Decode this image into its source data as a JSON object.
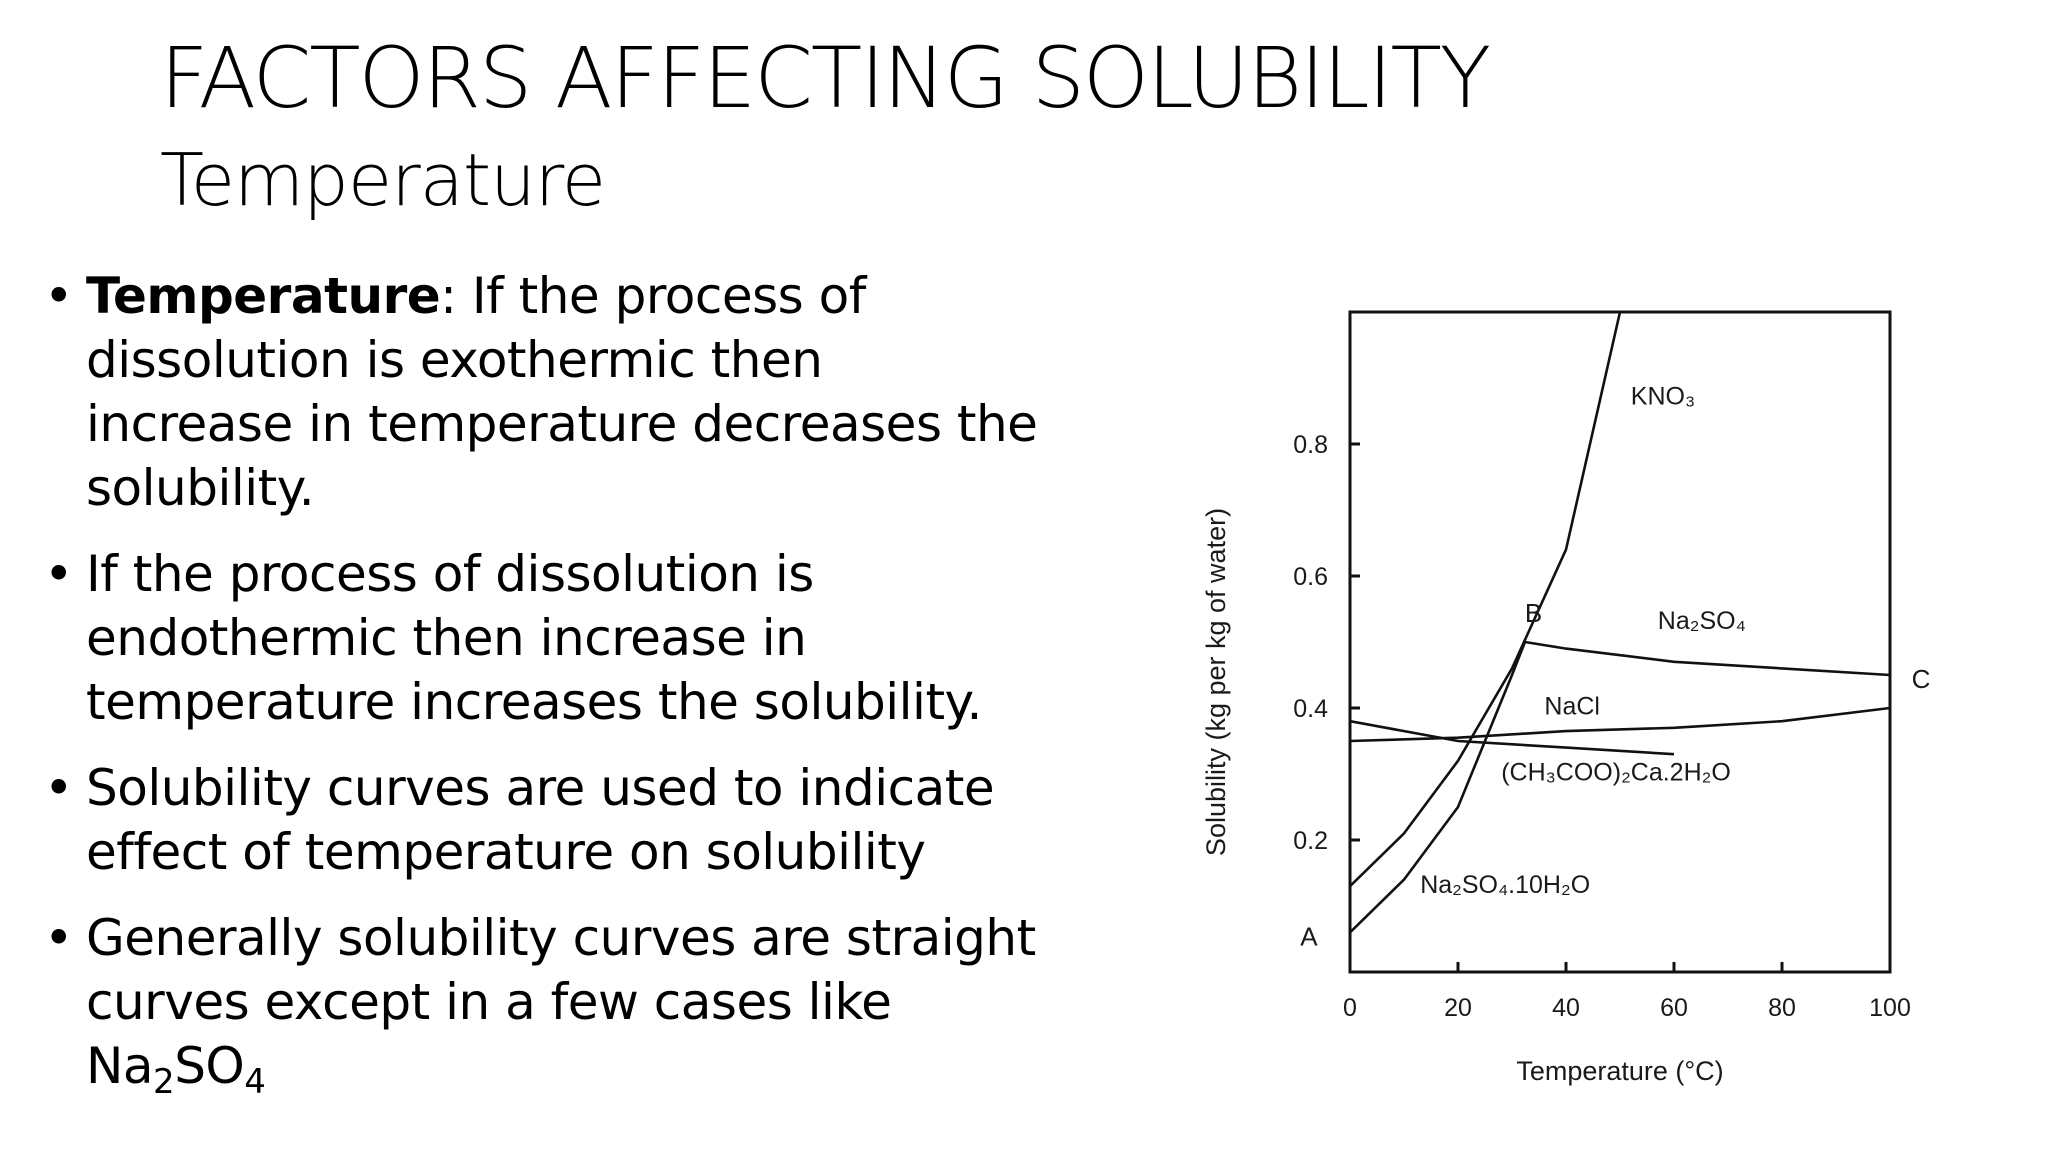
{
  "slide": {
    "title": "FACTORS AFFECTING SOLUBILITY",
    "subtitle": "Temperature",
    "bullets": [
      {
        "lead": "Temperature",
        "text": ": If the process of dissolution is exothermic then increase in temperature decreases the solubility."
      },
      {
        "text": "If the process of dissolution is endothermic then increase in temperature increases the solubility."
      },
      {
        "text": "Solubility curves are used to indicate effect of temperature on solubility"
      },
      {
        "text": "Generally solubility curves are straight curves except in a few cases like",
        "formula": {
          "a": "Na",
          "s1": "2",
          "b": "SO",
          "s2": "4"
        }
      }
    ]
  },
  "chart_data": {
    "type": "line",
    "xlabel": "Temperature (°C)",
    "ylabel": "Solubility (kg per kg of water)",
    "xlim": [
      0,
      100
    ],
    "ylim": [
      0,
      1.0
    ],
    "x_ticks": [
      "0",
      "20",
      "40",
      "60",
      "80",
      "100"
    ],
    "y_ticks": [
      "0.2",
      "0.4",
      "0.6",
      "0.8"
    ],
    "y_tick_values": [
      0.2,
      0.4,
      0.6,
      0.8
    ],
    "series": [
      {
        "name": "KNO₃",
        "x": [
          0,
          10,
          20,
          30,
          40,
          50
        ],
        "y": [
          0.13,
          0.21,
          0.32,
          0.46,
          0.64,
          1.0
        ]
      },
      {
        "name": "Na₂SO₄",
        "x": [
          32.4,
          40,
          60,
          80,
          100
        ],
        "y": [
          0.5,
          0.49,
          0.47,
          0.46,
          0.45
        ]
      },
      {
        "name": "NaCl",
        "x": [
          0,
          20,
          40,
          60,
          80,
          100
        ],
        "y": [
          0.35,
          0.355,
          0.365,
          0.37,
          0.38,
          0.4
        ]
      },
      {
        "name": "(CH₃COO)₂Ca.2H₂O",
        "x": [
          0,
          20,
          40,
          60
        ],
        "y": [
          0.38,
          0.35,
          0.34,
          0.33
        ]
      },
      {
        "name": "Na₂SO₄.10H₂O",
        "x": [
          0,
          10,
          20,
          25,
          30,
          32.4
        ],
        "y": [
          0.06,
          0.14,
          0.25,
          0.35,
          0.45,
          0.5
        ]
      }
    ],
    "point_labels": [
      "A",
      "B",
      "C"
    ]
  }
}
